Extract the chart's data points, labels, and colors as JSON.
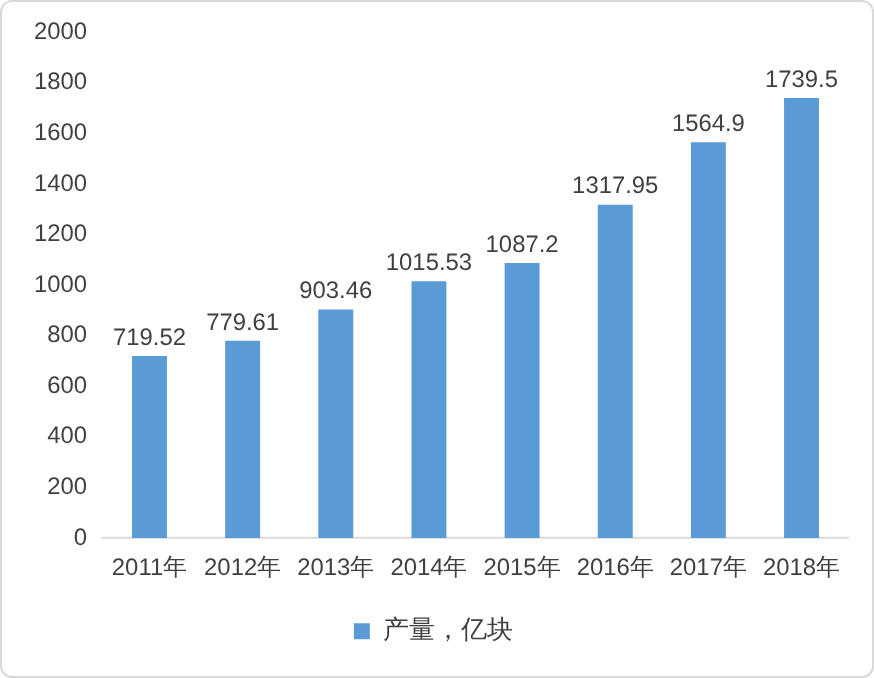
{
  "chart_data": {
    "type": "bar",
    "categories": [
      "2011年",
      "2012年",
      "2013年",
      "2014年",
      "2015年",
      "2016年",
      "2017年",
      "2018年"
    ],
    "series": [
      {
        "name": "产量，亿块",
        "color": "#5b9bd5",
        "values": [
          719.52,
          779.61,
          903.46,
          1015.53,
          1087.2,
          1317.95,
          1564.9,
          1739.5
        ]
      }
    ],
    "ylim": [
      0,
      2000
    ],
    "yticks": [
      0,
      200,
      400,
      600,
      800,
      1000,
      1200,
      1400,
      1600,
      1800,
      2000
    ],
    "grid": false,
    "legend": "bottom",
    "data_labels": true
  }
}
